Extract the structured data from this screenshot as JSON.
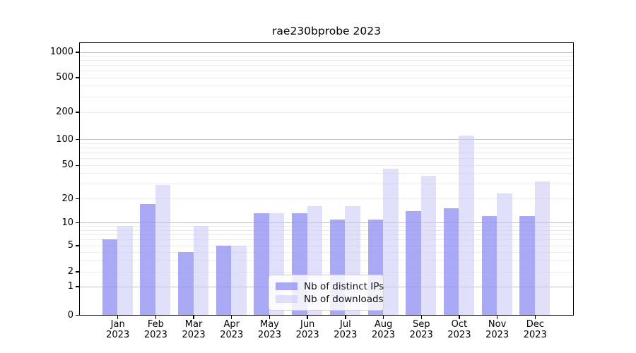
{
  "title": "rae230bprobe 2023",
  "chart_data": {
    "type": "bar",
    "title": "rae230bprobe 2023",
    "categories": [
      "Jan",
      "Feb",
      "Mar",
      "Apr",
      "May",
      "Jun",
      "Jul",
      "Aug",
      "Sep",
      "Oct",
      "Nov",
      "Dec"
    ],
    "x_tick_year": "2023",
    "series": [
      {
        "name": "Nb of distinct IPs",
        "color": "#a8a8f5",
        "fill": "rgba(147,147,242,0.8)",
        "values": [
          6,
          17,
          4,
          5,
          13,
          13,
          11,
          11,
          14,
          15,
          12,
          12
        ]
      },
      {
        "name": "Nb of downloads",
        "color": "#dfdff9",
        "fill": "rgba(199,199,247,0.55)",
        "values": [
          9,
          29,
          9,
          5,
          13,
          16,
          16,
          45,
          37,
          110,
          23,
          32
        ]
      }
    ],
    "yscale": "symlog",
    "ytick_labels": [
      "0",
      "1",
      "2",
      "5",
      "10",
      "20",
      "50",
      "100",
      "200",
      "500",
      "1000"
    ],
    "ylim": [
      0,
      1300
    ],
    "xlabel": "",
    "ylabel": "",
    "grid": "on",
    "legend_position": "lower-center-inside",
    "legend_entries": [
      "Nb of distinct IPs",
      "Nb of downloads"
    ]
  }
}
